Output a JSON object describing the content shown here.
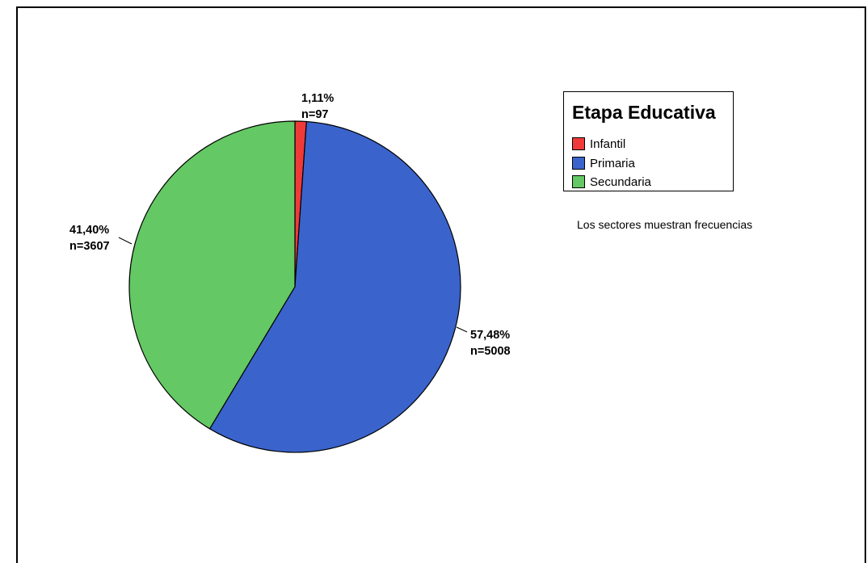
{
  "chart_data": {
    "type": "pie",
    "legend_title": "Etapa Educativa",
    "legend_position": "top-right",
    "note": "Los sectores muestran frecuencias",
    "slices": [
      {
        "name": "Infantil",
        "value": 97,
        "percent_label": "1,11%",
        "n_label": "n=97",
        "color": "#f03a3a"
      },
      {
        "name": "Primaria",
        "value": 5008,
        "percent_label": "57,48%",
        "n_label": "n=5008",
        "color": "#3a64cc"
      },
      {
        "name": "Secundaria",
        "value": 3607,
        "percent_label": "41,40%",
        "n_label": "n=3607",
        "color": "#64c864"
      }
    ]
  }
}
